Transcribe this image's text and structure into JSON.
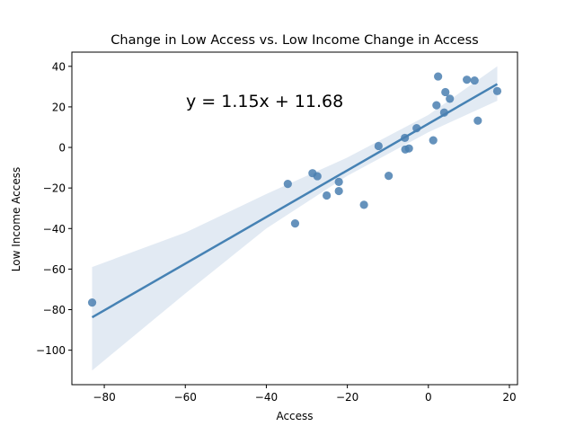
{
  "chart_data": {
    "type": "scatter",
    "title": "Change in Low Access vs. Low Income Change in Access",
    "xlabel": "Access",
    "ylabel": "Low Income Access",
    "xlim": [
      -88,
      22
    ],
    "ylim": [
      -117,
      47
    ],
    "xticks": [
      -80,
      -60,
      -40,
      -20,
      0,
      20
    ],
    "yticks": [
      -100,
      -80,
      -60,
      -40,
      -20,
      0,
      20,
      40
    ],
    "xtick_labels": [
      "−80",
      "−60",
      "−40",
      "−20",
      "0",
      "20"
    ],
    "ytick_labels": [
      "−100",
      "−80",
      "−60",
      "−40",
      "−20",
      "0",
      "20",
      "40"
    ],
    "grid": false,
    "annotation": "y = 1.15x + 11.68",
    "points": [
      {
        "x": -83.0,
        "y": -76.5
      },
      {
        "x": -34.7,
        "y": -18.0
      },
      {
        "x": -32.9,
        "y": -37.5
      },
      {
        "x": -28.6,
        "y": -12.7
      },
      {
        "x": -27.4,
        "y": -14.2
      },
      {
        "x": -25.1,
        "y": -23.7
      },
      {
        "x": -22.1,
        "y": -17.0
      },
      {
        "x": -22.1,
        "y": -21.5
      },
      {
        "x": -15.9,
        "y": -28.3
      },
      {
        "x": -12.3,
        "y": 0.7
      },
      {
        "x": -9.8,
        "y": -14.0
      },
      {
        "x": -5.8,
        "y": 4.7
      },
      {
        "x": -5.7,
        "y": -1.0
      },
      {
        "x": -4.8,
        "y": -0.5
      },
      {
        "x": -2.9,
        "y": 9.5
      },
      {
        "x": 1.2,
        "y": 3.5
      },
      {
        "x": 2.0,
        "y": 20.8
      },
      {
        "x": 2.4,
        "y": 35.0
      },
      {
        "x": 3.9,
        "y": 17.2
      },
      {
        "x": 4.2,
        "y": 27.3
      },
      {
        "x": 5.3,
        "y": 24.0
      },
      {
        "x": 9.5,
        "y": 33.4
      },
      {
        "x": 11.4,
        "y": 33.0
      },
      {
        "x": 12.2,
        "y": 13.2
      },
      {
        "x": 17.0,
        "y": 27.8
      }
    ],
    "regression": {
      "slope": 1.15,
      "intercept": 11.68,
      "x_range": [
        -83.0,
        17.0
      ]
    },
    "confidence_band": [
      {
        "x": -83.0,
        "lower": -110.0,
        "upper": -59.0
      },
      {
        "x": -60.0,
        "lower": -72.0,
        "upper": -42.0
      },
      {
        "x": -40.0,
        "lower": -40.0,
        "upper": -23.0
      },
      {
        "x": -20.0,
        "lower": -14.0,
        "upper": -5.0
      },
      {
        "x": 0.0,
        "lower": 7.5,
        "upper": 16.0
      },
      {
        "x": 17.0,
        "lower": 23.0,
        "upper": 40.0
      }
    ],
    "colors": {
      "points": "#4a7fb0",
      "line": "#4682b4",
      "band": "#dbe5f0"
    }
  }
}
